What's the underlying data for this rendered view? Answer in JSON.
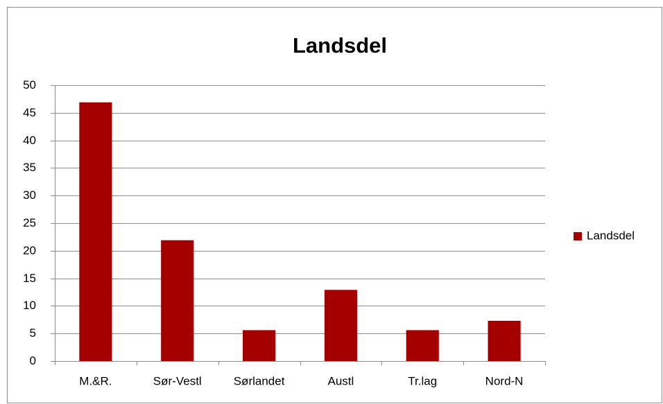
{
  "chart_data": {
    "type": "bar",
    "title": "Landsdel",
    "categories": [
      "M.&R.",
      "Sør-Vestl",
      "Sørlandet",
      "Austl",
      "Tr.lag",
      "Nord-N"
    ],
    "series": [
      {
        "name": "Landsdel",
        "color": "#a50000",
        "values": [
          46.9,
          21.9,
          5.6,
          12.9,
          5.6,
          7.3
        ]
      }
    ],
    "ylim": [
      0,
      50
    ],
    "yticks": [
      0,
      5,
      10,
      15,
      20,
      25,
      30,
      35,
      40,
      45,
      50
    ],
    "grid": true,
    "legend": "right"
  }
}
